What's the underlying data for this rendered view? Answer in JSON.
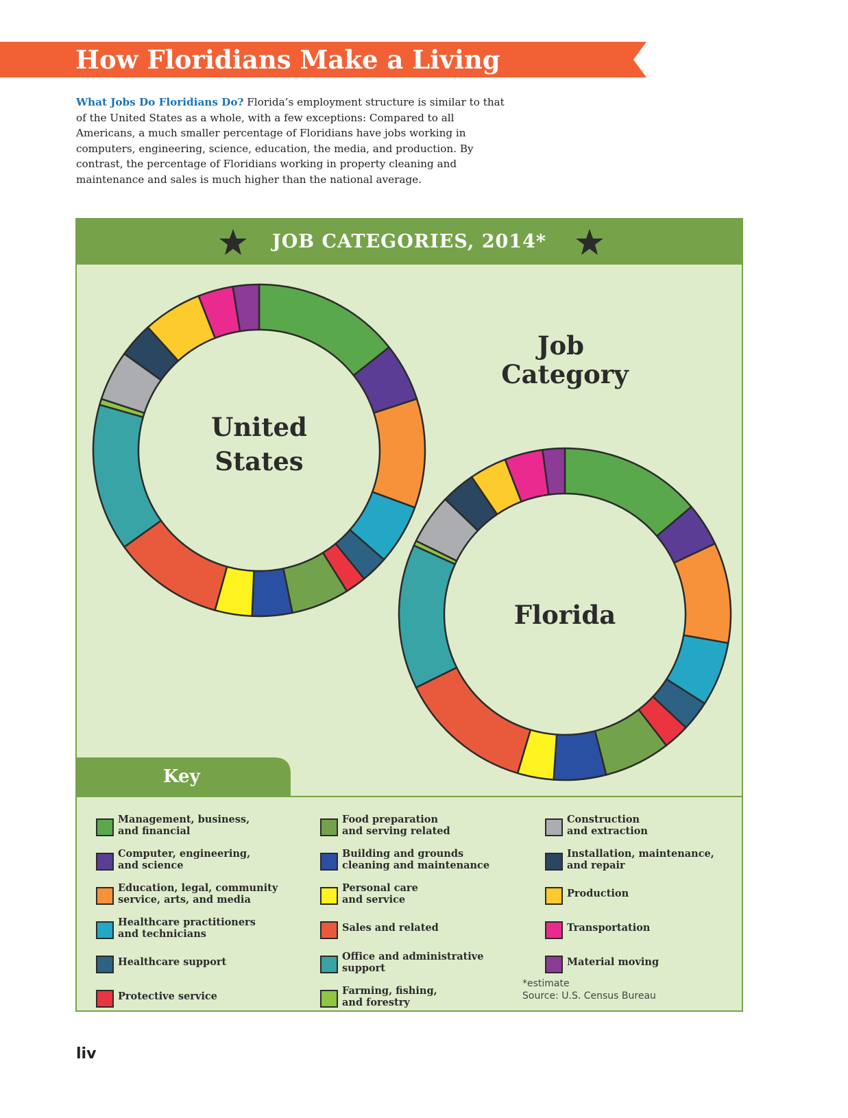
{
  "page": {
    "title": "How Floridians Make a Living",
    "intro_lead": "What Jobs Do Floridians Do?",
    "intro_body": " Florida’s employment structure is similar to that of the United States as a whole, with a few exceptions: Compared to all Americans, a much smaller percentage of Floridians have jobs working in computers, engineering, science, education, the media, and production. By contrast, the percentage of Floridians working in property cleaning and maintenance and sales is much higher than the national average.",
    "page_number": "liv"
  },
  "panel": {
    "title": "JOB CATEGORIES, 2014*",
    "category_title_line1": "Job",
    "category_title_line2": "Category",
    "key_label": "Key",
    "footnote": "*estimate",
    "source": "Source: U.S. Census Bureau"
  },
  "colors": {
    "banner": "#f26135",
    "panel_header": "#76a34a",
    "panel_bg": "#dfeccb"
  },
  "chart_data": [
    {
      "type": "pie",
      "variant": "donut",
      "title": "United States",
      "title_lines": [
        "United",
        "States"
      ],
      "categories": [
        "Management, business, and financial",
        "Computer, engineering, and science",
        "Education, legal, community service, arts, and media",
        "Healthcare practitioners and technicians",
        "Healthcare support",
        "Protective service",
        "Food preparation and serving related",
        "Building and grounds cleaning and maintenance",
        "Personal care and service",
        "Sales and related",
        "Office and administrative support",
        "Farming, fishing, and forestry",
        "Construction and extraction",
        "Installation, maintenance, and repair",
        "Production",
        "Transportation",
        "Material moving"
      ],
      "values": [
        14.7,
        5.8,
        10.9,
        6.0,
        2.7,
        2.1,
        5.8,
        4.0,
        3.7,
        11.1,
        14.7,
        0.6,
        5.0,
        3.5,
        5.9,
        3.5,
        2.6
      ],
      "colors": [
        "#5aa84c",
        "#5b3d96",
        "#f7923a",
        "#24a7c5",
        "#2e6284",
        "#ea3540",
        "#73a24c",
        "#2a50a3",
        "#fef21f",
        "#e95a3d",
        "#38a4a6",
        "#8dc642",
        "#acadb0",
        "#2a4660",
        "#fdcb2b",
        "#ea2a8f",
        "#8c3b96"
      ]
    },
    {
      "type": "pie",
      "variant": "donut",
      "title": "Florida",
      "title_lines": [
        "Florida"
      ],
      "categories": [
        "Management, business, and financial",
        "Computer, engineering, and science",
        "Education, legal, community service, arts, and media",
        "Healthcare practitioners and technicians",
        "Healthcare support",
        "Protective service",
        "Food preparation and serving related",
        "Building and grounds cleaning and maintenance",
        "Personal care and service",
        "Sales and related",
        "Office and administrative support",
        "Farming, fishing, and forestry",
        "Construction and extraction",
        "Installation, maintenance, and repair",
        "Production",
        "Transportation",
        "Material moving"
      ],
      "values": [
        14.1,
        4.3,
        10.0,
        6.4,
        3.0,
        2.6,
        6.6,
        5.2,
        3.6,
        13.4,
        14.4,
        0.5,
        5.0,
        3.4,
        3.7,
        3.8,
        2.2
      ],
      "colors": [
        "#5aa84c",
        "#5b3d96",
        "#f7923a",
        "#24a7c5",
        "#2e6284",
        "#ea3540",
        "#73a24c",
        "#2a50a3",
        "#fef21f",
        "#e95a3d",
        "#38a4a6",
        "#8dc642",
        "#acadb0",
        "#2a4660",
        "#fdcb2b",
        "#ea2a8f",
        "#8c3b96"
      ]
    }
  ],
  "legend": [
    {
      "label_line1": "Management, business,",
      "label_line2": "and financial",
      "color": "#5aa84c"
    },
    {
      "label_line1": "Computer, engineering,",
      "label_line2": "and science",
      "color": "#5b3d96"
    },
    {
      "label_line1": "Education, legal, community",
      "label_line2": "service, arts, and media",
      "color": "#f7923a"
    },
    {
      "label_line1": "Healthcare practitioners",
      "label_line2": "and technicians",
      "color": "#24a7c5"
    },
    {
      "label_line1": "Healthcare support",
      "label_line2": "",
      "color": "#2e6284"
    },
    {
      "label_line1": "Protective service",
      "label_line2": "",
      "color": "#ea3540"
    },
    {
      "label_line1": "Food preparation",
      "label_line2": "and serving related",
      "color": "#73a24c"
    },
    {
      "label_line1": "Building and grounds",
      "label_line2": "cleaning and maintenance",
      "color": "#2a50a3"
    },
    {
      "label_line1": "Personal care",
      "label_line2": "and service",
      "color": "#fef21f"
    },
    {
      "label_line1": "Sales and related",
      "label_line2": "",
      "color": "#e95a3d"
    },
    {
      "label_line1": "Office and administrative",
      "label_line2": "support",
      "color": "#38a4a6"
    },
    {
      "label_line1": "Farming, fishing,",
      "label_line2": "and forestry",
      "color": "#8dc642"
    },
    {
      "label_line1": "Construction",
      "label_line2": "and extraction",
      "color": "#acadb0"
    },
    {
      "label_line1": "Installation, maintenance,",
      "label_line2": "and repair",
      "color": "#2a4660"
    },
    {
      "label_line1": "Production",
      "label_line2": "",
      "color": "#fdcb2b"
    },
    {
      "label_line1": "Transportation",
      "label_line2": "",
      "color": "#ea2a8f"
    },
    {
      "label_line1": "Material moving",
      "label_line2": "",
      "color": "#8c3b96"
    }
  ]
}
